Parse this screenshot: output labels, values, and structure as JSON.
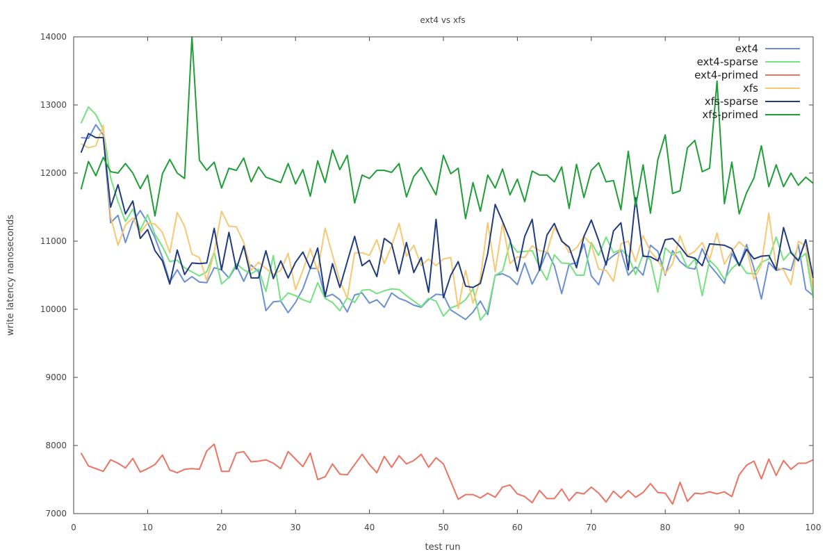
{
  "chart_data": {
    "type": "line",
    "title": "ext4 vs xfs",
    "xlabel": "test run",
    "ylabel": "write latency nanoseconds",
    "xlim": [
      0,
      100
    ],
    "ylim": [
      7000,
      14000
    ],
    "x_ticks": [
      "0",
      "10",
      "20",
      "30",
      "40",
      "50",
      "60",
      "70",
      "80",
      "90",
      "100"
    ],
    "y_ticks": [
      "7000",
      "8000",
      "9000",
      "10000",
      "11000",
      "12000",
      "13000",
      "14000"
    ],
    "grid": false,
    "legend_position": "top-right",
    "x": [
      1,
      2,
      3,
      4,
      5,
      6,
      7,
      8,
      9,
      10,
      11,
      12,
      13,
      14,
      15,
      16,
      17,
      18,
      19,
      20,
      21,
      22,
      23,
      24,
      25,
      26,
      27,
      28,
      29,
      30,
      31,
      32,
      33,
      34,
      35,
      36,
      37,
      38,
      39,
      40,
      41,
      42,
      43,
      44,
      45,
      46,
      47,
      48,
      49,
      50,
      51,
      52,
      53,
      54,
      55,
      56,
      57,
      58,
      59,
      60,
      61,
      62,
      63,
      64,
      65,
      66,
      67,
      68,
      69,
      70,
      71,
      72,
      73,
      74,
      75,
      76,
      77,
      78,
      79,
      80,
      81,
      82,
      83,
      84,
      85,
      86,
      87,
      88,
      89,
      90,
      91,
      92,
      93,
      94,
      95,
      96,
      97,
      98,
      99,
      100
    ],
    "series": [
      {
        "name": "ext4",
        "color": "#6b8fd6",
        "values": [
          12520,
          12510,
          12710,
          12560,
          11270,
          11380,
          10980,
          11290,
          11450,
          11270,
          11050,
          10760,
          10400,
          10580,
          10400,
          10480,
          10400,
          10390,
          10610,
          10580,
          10460,
          10640,
          10410,
          10650,
          10550,
          9980,
          10110,
          10120,
          9950,
          10100,
          10300,
          10600,
          10600,
          10180,
          10220,
          10140,
          9960,
          10210,
          10240,
          10090,
          10140,
          10030,
          10240,
          10160,
          10120,
          10060,
          10030,
          10140,
          10220,
          10210,
          9990,
          9920,
          9850,
          9960,
          10120,
          9920,
          10500,
          10520,
          10470,
          10360,
          10680,
          10370,
          10580,
          10850,
          10640,
          10230,
          10660,
          10680,
          10960,
          10490,
          10360,
          10700,
          10790,
          10860,
          10500,
          10620,
          10500,
          10940,
          10850,
          10500,
          10860,
          10700,
          10610,
          10590,
          10890,
          10650,
          10520,
          10380,
          10820,
          10640,
          10950,
          10600,
          10150,
          10690,
          10570,
          10600,
          10570,
          10950,
          10290,
          10200
        ]
      },
      {
        "name": "ext4-sparse",
        "color": "#74e27e",
        "values": [
          12730,
          12970,
          12860,
          12640,
          11930,
          11580,
          11290,
          11470,
          11160,
          11390,
          11100,
          10920,
          10700,
          10720,
          10610,
          10550,
          10490,
          10550,
          10840,
          10370,
          10470,
          10670,
          10580,
          10520,
          10590,
          10260,
          10790,
          10120,
          10240,
          10200,
          10140,
          10100,
          10390,
          10160,
          10100,
          9980,
          10170,
          10100,
          10280,
          10290,
          10230,
          10270,
          10300,
          10290,
          10200,
          10120,
          10040,
          10160,
          10120,
          9900,
          10020,
          10060,
          10140,
          10300,
          9840,
          9980,
          10500,
          10560,
          10980,
          10840,
          10850,
          10860,
          10620,
          10430,
          10800,
          10680,
          10670,
          10500,
          10500,
          10980,
          10790,
          11060,
          10830,
          10880,
          10780,
          10510,
          10800,
          10730,
          10250,
          10900,
          10800,
          10850,
          10610,
          10740,
          10200,
          10720,
          10610,
          10440,
          10600,
          10690,
          10530,
          10520,
          10690,
          10740,
          11060,
          10720,
          10850,
          10730,
          10820,
          10170
        ]
      },
      {
        "name": "ext4-primed",
        "color": "#ec7361",
        "values": [
          7890,
          7700,
          7660,
          7620,
          7790,
          7740,
          7670,
          7810,
          7610,
          7660,
          7720,
          7860,
          7640,
          7600,
          7650,
          7660,
          7650,
          7920,
          8020,
          7620,
          7620,
          7890,
          7910,
          7760,
          7770,
          7790,
          7740,
          7660,
          7910,
          7800,
          7690,
          7890,
          7500,
          7540,
          7730,
          7580,
          7570,
          7720,
          7870,
          7720,
          7600,
          7840,
          7680,
          7850,
          7730,
          7780,
          7870,
          7680,
          7820,
          7730,
          7470,
          7210,
          7280,
          7280,
          7230,
          7300,
          7240,
          7390,
          7420,
          7290,
          7250,
          7160,
          7340,
          7220,
          7220,
          7360,
          7190,
          7310,
          7290,
          7390,
          7300,
          7170,
          7330,
          7230,
          7340,
          7240,
          7310,
          7440,
          7310,
          7300,
          7140,
          7460,
          7180,
          7300,
          7290,
          7320,
          7290,
          7320,
          7250,
          7570,
          7710,
          7770,
          7510,
          7800,
          7560,
          7780,
          7650,
          7740,
          7740,
          7790
        ]
      },
      {
        "name": "xfs",
        "color": "#f7c871",
        "values": [
          12430,
          12370,
          12400,
          12700,
          11360,
          10940,
          11240,
          11340,
          11120,
          11270,
          11250,
          11130,
          10830,
          11420,
          11220,
          10810,
          10760,
          10420,
          10840,
          11440,
          11220,
          11210,
          10980,
          10570,
          10690,
          10600,
          10510,
          10570,
          10820,
          10290,
          10570,
          10890,
          10560,
          11190,
          10800,
          10420,
          10160,
          10830,
          10830,
          10790,
          11020,
          10670,
          10930,
          11260,
          10780,
          10940,
          10640,
          10740,
          10640,
          10740,
          10760,
          10010,
          10570,
          10090,
          10450,
          11270,
          10550,
          11260,
          10670,
          10770,
          10760,
          10930,
          10860,
          10840,
          11200,
          11030,
          10830,
          10900,
          11070,
          10950,
          10590,
          10570,
          10410,
          10960,
          11000,
          10700,
          11080,
          10850,
          10720,
          10520,
          10670,
          11080,
          10790,
          10850,
          10980,
          10730,
          11120,
          10660,
          10850,
          10990,
          10890,
          10440,
          10650,
          11410,
          10610,
          10580,
          10360,
          11000,
          10930,
          10310
        ]
      },
      {
        "name": "xfs-sparse",
        "color": "#1f3a80",
        "values": [
          12300,
          12580,
          12520,
          12520,
          11500,
          11830,
          11400,
          11590,
          11040,
          11170,
          10860,
          10710,
          10370,
          10870,
          10510,
          10680,
          10670,
          10680,
          11190,
          10580,
          11130,
          10590,
          10930,
          10460,
          10460,
          10860,
          10450,
          10710,
          10460,
          10690,
          10840,
          10600,
          10900,
          10190,
          10670,
          10320,
          10700,
          11070,
          10640,
          10720,
          10480,
          11040,
          10960,
          10520,
          10980,
          10540,
          10760,
          10250,
          11320,
          10170,
          10500,
          10700,
          10340,
          10320,
          10380,
          10820,
          11540,
          11290,
          11020,
          10560,
          11070,
          11320,
          10570,
          11090,
          11260,
          11000,
          10910,
          10610,
          11070,
          11310,
          11010,
          10650,
          11150,
          11270,
          10580,
          11640,
          10780,
          10770,
          10710,
          11020,
          11040,
          10920,
          10780,
          10750,
          10640,
          10960,
          10950,
          10940,
          10890,
          10640,
          10880,
          10740,
          10780,
          10790,
          10580,
          11200,
          10830,
          10710,
          11020,
          10460
        ]
      },
      {
        "name": "xfs-primed",
        "color": "#1e9e36",
        "values": [
          11760,
          12170,
          11960,
          12230,
          12020,
          12000,
          12140,
          12000,
          11770,
          11970,
          11370,
          11990,
          12200,
          12000,
          11920,
          14000,
          12190,
          12040,
          12160,
          11780,
          12070,
          12040,
          12220,
          11870,
          12090,
          11940,
          11900,
          11860,
          12140,
          11840,
          12050,
          11660,
          12180,
          11860,
          12340,
          12050,
          12260,
          11560,
          11970,
          11920,
          12040,
          12040,
          12010,
          12140,
          11650,
          11950,
          12080,
          11880,
          11680,
          12260,
          11990,
          12070,
          11330,
          11860,
          11440,
          11970,
          11780,
          12060,
          11680,
          11910,
          11580,
          12030,
          11970,
          11970,
          11870,
          12090,
          11480,
          12130,
          11640,
          12040,
          12150,
          11870,
          11890,
          11460,
          12320,
          11510,
          12120,
          11410,
          12200,
          12560,
          11700,
          11740,
          12370,
          12480,
          12020,
          12070,
          13350,
          11550,
          12160,
          11400,
          11710,
          11930,
          12400,
          11800,
          12120,
          11800,
          12000,
          11820,
          11940,
          11850
        ]
      }
    ]
  }
}
